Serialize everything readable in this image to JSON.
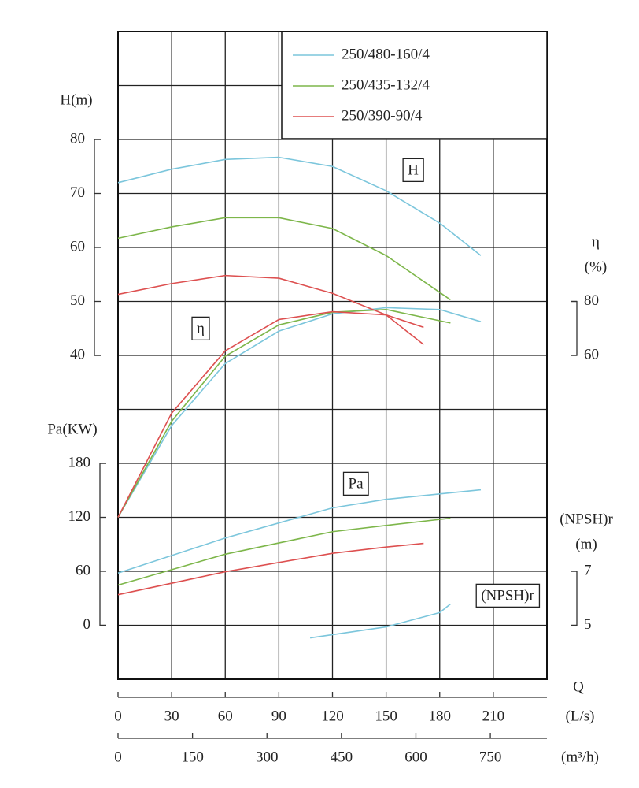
{
  "chart_data": {
    "type": "line",
    "legend_position": "upper right",
    "grid": true,
    "x_label": "Q",
    "x_unit": "(L/s)",
    "xlim": [
      0,
      240
    ],
    "xticks": [
      0,
      30,
      60,
      90,
      120,
      150,
      180,
      210
    ],
    "x2_unit": "(m³/h)",
    "x2lim": [
      0,
      864
    ],
    "x2ticks": [
      0,
      150,
      300,
      450,
      600,
      750
    ],
    "axes": {
      "H": {
        "label": [
          "H(m)"
        ],
        "side": "left",
        "ylim": [
          -20,
          100
        ],
        "yticks": [
          40,
          50,
          60,
          70,
          80
        ],
        "annotation": "H"
      },
      "eta": {
        "label": [
          "η",
          "(%)"
        ],
        "side": "right",
        "ylim": [
          -60,
          180
        ],
        "yticks": [
          60,
          80
        ],
        "annotation": "η"
      },
      "Pa": {
        "label": [
          "Pa(KW)"
        ],
        "side": "left",
        "ylim": [
          -60,
          660
        ],
        "yticks": [
          0,
          60,
          120,
          180
        ],
        "annotation": "Pa"
      },
      "NPSH": {
        "label": [
          "(NPSH)r",
          "(m)"
        ],
        "side": "right",
        "ylim": [
          3,
          27
        ],
        "yticks": [
          5,
          7
        ],
        "annotation": "(NPSH)r"
      }
    },
    "series": [
      {
        "name": "250/480-160/4",
        "color": "#7cc6dc",
        "H": {
          "x": [
            0,
            30,
            60,
            90,
            120,
            150,
            180,
            203
          ],
          "values": [
            72,
            74.5,
            76.3,
            76.7,
            75,
            70.5,
            64.5,
            58.5
          ]
        },
        "eta": {
          "x": [
            0,
            30,
            60,
            90,
            120,
            150,
            180,
            203
          ],
          "values": [
            0,
            34,
            57,
            69,
            75.4,
            77.7,
            77,
            72.5
          ]
        },
        "Pa": {
          "x": [
            0,
            60,
            120,
            150,
            180,
            203
          ],
          "values": [
            58,
            97,
            130.5,
            140,
            146,
            150.6
          ]
        },
        "NPSH": {
          "x": [
            107.5,
            150,
            180,
            186
          ],
          "values": [
            4.53,
            4.94,
            5.47,
            5.79
          ]
        }
      },
      {
        "name": "250/435-132/4",
        "color": "#7db64a",
        "H": {
          "x": [
            0,
            30,
            60,
            90,
            120,
            150,
            186
          ],
          "values": [
            61.7,
            63.8,
            65.5,
            65.5,
            63.5,
            58.5,
            50.3
          ]
        },
        "eta": {
          "x": [
            0,
            30,
            60,
            90,
            120,
            150,
            186
          ],
          "values": [
            0,
            35.6,
            59.7,
            71.3,
            76,
            77,
            72
          ]
        },
        "Pa": {
          "x": [
            0,
            60,
            120,
            150,
            186
          ],
          "values": [
            44.7,
            79,
            104,
            111,
            119
          ]
        }
      },
      {
        "name": "250/390-90/4",
        "color": "#dd5050",
        "H": {
          "x": [
            0,
            30,
            60,
            90,
            120,
            150,
            171
          ],
          "values": [
            51.3,
            53.3,
            54.8,
            54.3,
            51.5,
            47.5,
            42
          ]
        },
        "eta": {
          "x": [
            0,
            30,
            60,
            90,
            120,
            150,
            171
          ],
          "values": [
            0,
            38.6,
            61.7,
            73.3,
            76.2,
            75,
            70.4
          ]
        },
        "Pa": {
          "x": [
            0,
            60,
            120,
            150,
            171
          ],
          "values": [
            34,
            59.5,
            80,
            87,
            91
          ]
        }
      }
    ]
  }
}
